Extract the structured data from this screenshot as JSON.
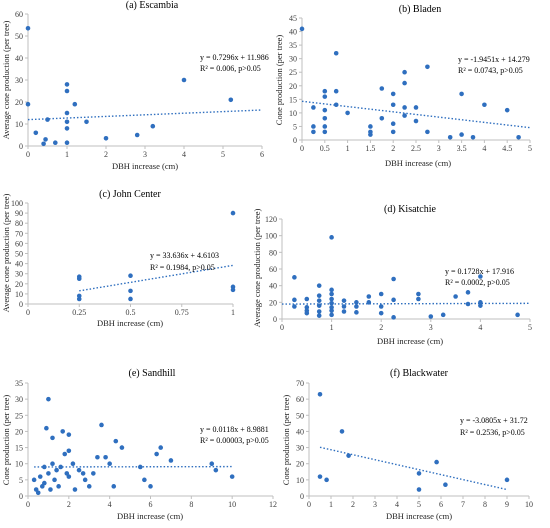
{
  "figure": {
    "background": "#ffffff",
    "point_color": "#2f6fbf",
    "trend_color": "#2f6fbf",
    "axis_color": "#bfbfbf"
  },
  "chart_data": [
    {
      "type": "scatter",
      "title": "(a) Escambia",
      "xlabel": "DBH increase (cm)",
      "ylabel": "Average cone production (per tree)",
      "xlim": [
        0,
        6
      ],
      "ylim": [
        0,
        60
      ],
      "xticks": [
        "0",
        "1",
        "2",
        "3",
        "4",
        "5",
        "6"
      ],
      "yticks": [
        "0",
        "10",
        "20",
        "30",
        "40",
        "50",
        "60"
      ],
      "equation": "y = 0.7296x + 11.986",
      "r2": "R² = 0.006, p>0.05",
      "trend": [
        0.7296,
        11.986
      ],
      "grid": false,
      "points": [
        [
          0,
          53.5
        ],
        [
          0,
          19
        ],
        [
          0.2,
          6
        ],
        [
          0.4,
          1
        ],
        [
          0.45,
          3
        ],
        [
          0.5,
          12
        ],
        [
          0.7,
          1.5
        ],
        [
          1,
          1.5
        ],
        [
          1,
          8
        ],
        [
          1,
          11
        ],
        [
          1,
          15
        ],
        [
          1,
          25
        ],
        [
          1,
          28
        ],
        [
          1.2,
          19
        ],
        [
          1.5,
          11
        ],
        [
          2,
          3.5
        ],
        [
          2.8,
          5
        ],
        [
          3.2,
          9
        ],
        [
          4,
          30
        ],
        [
          5.2,
          21
        ]
      ]
    },
    {
      "type": "scatter",
      "title": "(b) Bladen",
      "xlabel": "DBH increase (cm)",
      "ylabel": "Cone production (per tree)",
      "xlim": [
        0,
        5
      ],
      "ylim": [
        0,
        45
      ],
      "xticks": [
        "0",
        "0.5",
        "1",
        "1.5",
        "2",
        "2.5",
        "3",
        "3.5",
        "4",
        "4.5",
        "5"
      ],
      "yticks": [
        "0",
        "5",
        "10",
        "15",
        "20",
        "25",
        "30",
        "35",
        "40",
        "45"
      ],
      "equation": "y = -1.9451x + 14.279",
      "r2": "R² = 0.0743, p>0.05",
      "trend": [
        -1.9451,
        14.279
      ],
      "grid": false,
      "points": [
        [
          0,
          41
        ],
        [
          0.25,
          12
        ],
        [
          0.25,
          5
        ],
        [
          0.25,
          3
        ],
        [
          0.5,
          18
        ],
        [
          0.5,
          16
        ],
        [
          0.5,
          11
        ],
        [
          0.5,
          8
        ],
        [
          0.5,
          5
        ],
        [
          0.5,
          3
        ],
        [
          0.75,
          32
        ],
        [
          0.75,
          18
        ],
        [
          0.75,
          13
        ],
        [
          1,
          10
        ],
        [
          1.5,
          5
        ],
        [
          1.5,
          3
        ],
        [
          1.5,
          2
        ],
        [
          1.75,
          19
        ],
        [
          1.75,
          8
        ],
        [
          2,
          17
        ],
        [
          2,
          13
        ],
        [
          2,
          6
        ],
        [
          2,
          3
        ],
        [
          2.25,
          25
        ],
        [
          2.25,
          21
        ],
        [
          2.25,
          12
        ],
        [
          2.25,
          9
        ],
        [
          2.5,
          12
        ],
        [
          2.5,
          7
        ],
        [
          2.75,
          27
        ],
        [
          2.75,
          3
        ],
        [
          3.25,
          1
        ],
        [
          3.5,
          17
        ],
        [
          3.5,
          2
        ],
        [
          3.75,
          1
        ],
        [
          4,
          13
        ],
        [
          4.5,
          11
        ],
        [
          4.75,
          1
        ]
      ]
    },
    {
      "type": "scatter",
      "title": "(c) John Center",
      "xlabel": "DBH increase (cm)",
      "ylabel": "Average cone production (per tree)",
      "xlim": [
        0,
        1
      ],
      "ylim": [
        0,
        100
      ],
      "xticks": [
        "0",
        "0.25",
        "0.5",
        "0.75",
        "1"
      ],
      "yticks": [
        "0",
        "10",
        "20",
        "30",
        "40",
        "50",
        "60",
        "70",
        "80",
        "90",
        "100"
      ],
      "equation": "y = 33.636x + 4.6103",
      "r2": "R² = 0.1984, p>0.05",
      "trend": [
        33.636,
        4.6103
      ],
      "trend_range": [
        0.25,
        1
      ],
      "grid": false,
      "points": [
        [
          0.25,
          27
        ],
        [
          0.25,
          25
        ],
        [
          0.25,
          8
        ],
        [
          0.25,
          5
        ],
        [
          0.5,
          28
        ],
        [
          0.5,
          13
        ],
        [
          0.5,
          5
        ],
        [
          1,
          90
        ],
        [
          1,
          17
        ],
        [
          1,
          14
        ]
      ]
    },
    {
      "type": "scatter",
      "title": "(d) Kisatchie",
      "xlabel": "DBH increase (cm)",
      "ylabel": "Average cone production (per tree)",
      "xlim": [
        0,
        5
      ],
      "ylim": [
        0,
        120
      ],
      "xticks": [
        "0",
        "1",
        "2",
        "3",
        "4",
        "5"
      ],
      "yticks": [
        "0",
        "20",
        "40",
        "60",
        "80",
        "100",
        "120"
      ],
      "equation": "y = 0.1728x + 17.916",
      "r2": "R² = 0.0002, p>0.05",
      "trend": [
        0.1728,
        17.916
      ],
      "grid": false,
      "points": [
        [
          0.25,
          50
        ],
        [
          0.25,
          23
        ],
        [
          0.25,
          15
        ],
        [
          0.5,
          24
        ],
        [
          0.5,
          14
        ],
        [
          0.5,
          10
        ],
        [
          0.5,
          7
        ],
        [
          0.75,
          40
        ],
        [
          0.75,
          28
        ],
        [
          0.75,
          22
        ],
        [
          0.75,
          16
        ],
        [
          0.75,
          9
        ],
        [
          0.75,
          4
        ],
        [
          1,
          98
        ],
        [
          1,
          35
        ],
        [
          1,
          30
        ],
        [
          1,
          24
        ],
        [
          1,
          19
        ],
        [
          1,
          14
        ],
        [
          1,
          10
        ],
        [
          1,
          5
        ],
        [
          1.25,
          22
        ],
        [
          1.25,
          15
        ],
        [
          1.25,
          9
        ],
        [
          1.5,
          20
        ],
        [
          1.5,
          15
        ],
        [
          1.5,
          8
        ],
        [
          1.75,
          27
        ],
        [
          1.75,
          20
        ],
        [
          2,
          30
        ],
        [
          2,
          15
        ],
        [
          2,
          7
        ],
        [
          2.25,
          48
        ],
        [
          2.25,
          23
        ],
        [
          2.25,
          2
        ],
        [
          2.75,
          30
        ],
        [
          2.75,
          24
        ],
        [
          3,
          3
        ],
        [
          3.25,
          5
        ],
        [
          3.5,
          27
        ],
        [
          3.75,
          32
        ],
        [
          3.75,
          18
        ],
        [
          4,
          51
        ],
        [
          4,
          20
        ],
        [
          4,
          16
        ],
        [
          4.75,
          5
        ]
      ]
    },
    {
      "type": "scatter",
      "title": "(e) Sandhill",
      "xlabel": "DBH increase (cm)",
      "ylabel": "Cone production (per tree)",
      "xlim": [
        0,
        12
      ],
      "ylim": [
        0,
        35
      ],
      "xticks": [
        "0",
        "2",
        "4",
        "6",
        "8",
        "10",
        "12"
      ],
      "yticks": [
        "0",
        "5",
        "10",
        "15",
        "20",
        "25",
        "30",
        "35"
      ],
      "equation": "y = 0.0118x + 8.9881",
      "r2": "R² = 0.00003, p>0.05",
      "trend": [
        0.0118,
        8.9881
      ],
      "trend_range": [
        0.3,
        10
      ],
      "grid": false,
      "points": [
        [
          0.3,
          5
        ],
        [
          0.4,
          2
        ],
        [
          0.5,
          1
        ],
        [
          0.6,
          6
        ],
        [
          0.7,
          3
        ],
        [
          0.8,
          9
        ],
        [
          0.8,
          4
        ],
        [
          0.9,
          21
        ],
        [
          1,
          30
        ],
        [
          1,
          7
        ],
        [
          1.1,
          2
        ],
        [
          1.2,
          18
        ],
        [
          1.2,
          10
        ],
        [
          1.3,
          5
        ],
        [
          1.4,
          8
        ],
        [
          1.5,
          3
        ],
        [
          1.6,
          9
        ],
        [
          1.7,
          20
        ],
        [
          1.8,
          13
        ],
        [
          1.9,
          7
        ],
        [
          2,
          19
        ],
        [
          2,
          14
        ],
        [
          2,
          6
        ],
        [
          2.2,
          10
        ],
        [
          2.3,
          2
        ],
        [
          2.5,
          8
        ],
        [
          2.7,
          7
        ],
        [
          2.8,
          5
        ],
        [
          3,
          3
        ],
        [
          3.2,
          7
        ],
        [
          3.4,
          12
        ],
        [
          3.6,
          22
        ],
        [
          3.8,
          12
        ],
        [
          4,
          10
        ],
        [
          4.2,
          3
        ],
        [
          4.3,
          17
        ],
        [
          4.6,
          15
        ],
        [
          5.5,
          9
        ],
        [
          5.7,
          5
        ],
        [
          6,
          3
        ],
        [
          6.3,
          13
        ],
        [
          6.5,
          15
        ],
        [
          7,
          11
        ],
        [
          9,
          10
        ],
        [
          9.2,
          8
        ],
        [
          10,
          6
        ]
      ]
    },
    {
      "type": "scatter",
      "title": "(f) Blackwater",
      "xlabel": "DBH increase (cm)",
      "ylabel": "Cone production (per tree)",
      "xlim": [
        0,
        10
      ],
      "ylim": [
        0,
        70
      ],
      "xticks": [
        "0",
        "1",
        "2",
        "3",
        "4",
        "5",
        "6",
        "7",
        "8",
        "9",
        "10"
      ],
      "yticks": [
        "0",
        "10",
        "20",
        "30",
        "40",
        "50",
        "60",
        "70"
      ],
      "equation": "y = -3.0805x + 31.72",
      "r2": "R² = 0.2536, p>0.05",
      "trend": [
        -3.0805,
        31.72
      ],
      "trend_range": [
        0.5,
        9
      ],
      "grid": false,
      "points": [
        [
          0.5,
          63
        ],
        [
          0.5,
          12
        ],
        [
          0.8,
          10
        ],
        [
          1.5,
          40
        ],
        [
          1.8,
          25
        ],
        [
          5,
          14
        ],
        [
          5,
          4
        ],
        [
          5.8,
          21
        ],
        [
          6.2,
          7
        ],
        [
          9,
          10
        ]
      ]
    }
  ]
}
